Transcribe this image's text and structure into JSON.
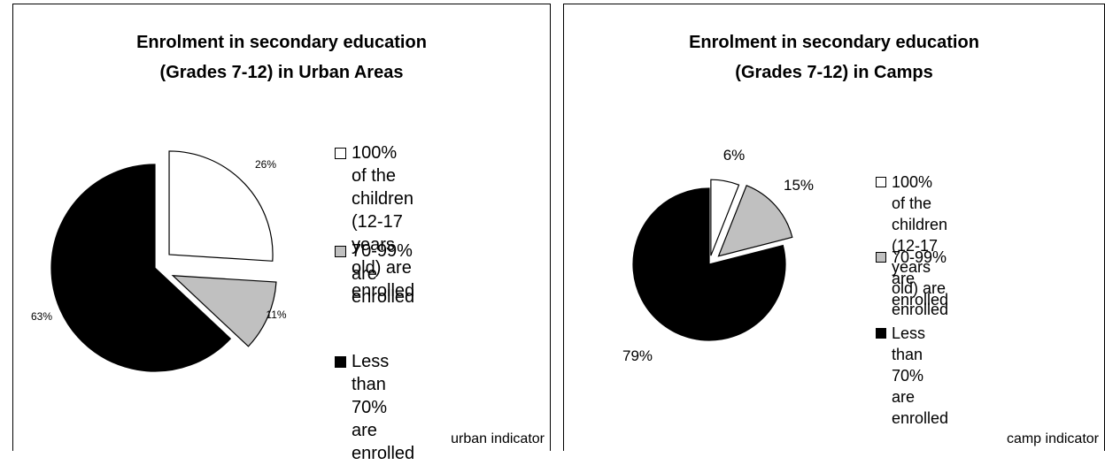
{
  "chart_data": [
    {
      "type": "pie",
      "title": "Enrolment in secondary education (Grades 7-12) in Urban Areas",
      "title_lines": [
        "Enrolment in secondary education",
        "(Grades 7-12) in Urban Areas"
      ],
      "categories": [
        "100% of the children (12-17 years old) are enrolled",
        "70-99% are enrolled",
        "Less than 70% are enrolled"
      ],
      "values": [
        26,
        11,
        63
      ],
      "labels": [
        "26%",
        "11%",
        "63%"
      ],
      "colors": [
        "#ffffff",
        "#c0c0c0",
        "#000000"
      ],
      "legend_lines": [
        [
          "100% of the",
          "children (12-17",
          "years old) are",
          "enrolled"
        ],
        [
          "70-99% are enrolled"
        ],
        [
          "Less than 70% are",
          "enrolled"
        ]
      ],
      "legend_position": "right",
      "footnote": "urban indicator"
    },
    {
      "type": "pie",
      "title": "Enrolment in secondary education (Grades 7-12) in Camps",
      "title_lines": [
        "Enrolment in secondary education",
        "(Grades 7-12) in Camps"
      ],
      "categories": [
        "100% of the children (12-17 years old) are enrolled",
        "70-99% are enrolled",
        "Less than 70% are enrolled"
      ],
      "values": [
        6,
        15,
        79
      ],
      "labels": [
        "6%",
        "15%",
        "79%"
      ],
      "colors": [
        "#ffffff",
        "#c0c0c0",
        "#000000"
      ],
      "legend_lines": [
        [
          "100% of the children",
          "(12-17 years old) are",
          "enrolled"
        ],
        [
          "70-99% are enrolled"
        ],
        [
          "Less than 70% are",
          "enrolled"
        ]
      ],
      "legend_position": "right",
      "footnote": "camp indicator"
    }
  ]
}
